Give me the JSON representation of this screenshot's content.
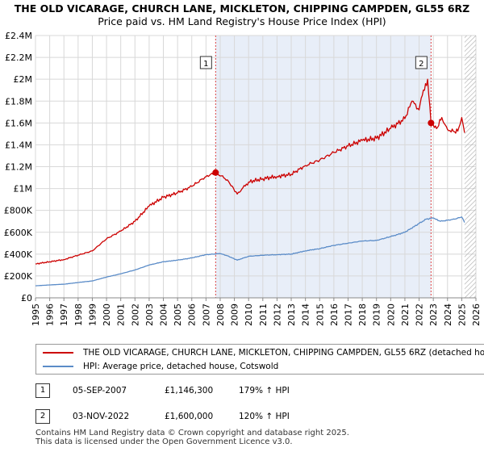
{
  "chart_data": {
    "type": "line",
    "title": "THE OLD VICARAGE, CHURCH LANE, MICKLETON, CHIPPING CAMPDEN, GL55 6RZ",
    "subtitle": "Price paid vs. HM Land Registry's House Price Index (HPI)",
    "xlabel": "",
    "ylabel": "",
    "xlim": [
      1995,
      2026
    ],
    "ylim": [
      0,
      2400000
    ],
    "x_ticks": [
      "1995",
      "1996",
      "1997",
      "1998",
      "1999",
      "2000",
      "2001",
      "2002",
      "2003",
      "2004",
      "2005",
      "2006",
      "2007",
      "2008",
      "2009",
      "2010",
      "2011",
      "2012",
      "2013",
      "2014",
      "2015",
      "2016",
      "2017",
      "2018",
      "2019",
      "2020",
      "2021",
      "2022",
      "2023",
      "2024",
      "2025",
      "2026"
    ],
    "y_ticks": [
      {
        "value": 0,
        "label": "£0"
      },
      {
        "value": 200000,
        "label": "£200K"
      },
      {
        "value": 400000,
        "label": "£400K"
      },
      {
        "value": 600000,
        "label": "£600K"
      },
      {
        "value": 800000,
        "label": "£800K"
      },
      {
        "value": 1000000,
        "label": "£1M"
      },
      {
        "value": 1200000,
        "label": "£1.2M"
      },
      {
        "value": 1400000,
        "label": "£1.4M"
      },
      {
        "value": 1600000,
        "label": "£1.6M"
      },
      {
        "value": 1800000,
        "label": "£1.8M"
      },
      {
        "value": 2000000,
        "label": "£2M"
      },
      {
        "value": 2200000,
        "label": "£2.2M"
      },
      {
        "value": 2400000,
        "label": "£2.4M"
      }
    ],
    "grid": true,
    "series": [
      {
        "name": "THE OLD VICARAGE, CHURCH LANE, MICKLETON, CHIPPING CAMPDEN, GL55 6RZ (detached house)",
        "color": "#cc0000",
        "x": [
          1995,
          1996,
          1997,
          1998,
          1999,
          2000,
          2001,
          2002,
          2003,
          2004,
          2005,
          2006,
          2007,
          2007.68,
          2008.5,
          2009.2,
          2010,
          2011,
          2012,
          2013,
          2014,
          2015,
          2016,
          2017,
          2018,
          2019,
          2020,
          2021,
          2021.5,
          2022,
          2022.3,
          2022.6,
          2022.84,
          2023,
          2023.3,
          2023.6,
          2024,
          2024.5,
          2024.8,
          2025,
          2025.2
        ],
        "y": [
          310000,
          330000,
          350000,
          390000,
          430000,
          540000,
          610000,
          700000,
          840000,
          920000,
          960000,
          1020000,
          1110000,
          1146300,
          1080000,
          950000,
          1060000,
          1090000,
          1110000,
          1130000,
          1210000,
          1260000,
          1330000,
          1390000,
          1440000,
          1460000,
          1550000,
          1640000,
          1800000,
          1720000,
          1900000,
          2000000,
          1600000,
          1580000,
          1560000,
          1650000,
          1540000,
          1520000,
          1560000,
          1650000,
          1510000
        ]
      },
      {
        "name": "HPI: Average price, detached house, Cotswold",
        "color": "#5b8cc8",
        "x": [
          1995,
          1996,
          1997,
          1998,
          1999,
          2000,
          2001,
          2002,
          2003,
          2004,
          2005,
          2006,
          2007,
          2008,
          2008.5,
          2009.2,
          2010,
          2011,
          2012,
          2013,
          2014,
          2015,
          2016,
          2017,
          2018,
          2019,
          2020,
          2021,
          2022,
          2022.5,
          2023,
          2023.5,
          2024,
          2024.5,
          2025,
          2025.2
        ],
        "y": [
          110000,
          118000,
          125000,
          140000,
          155000,
          190000,
          220000,
          255000,
          300000,
          330000,
          345000,
          365000,
          395000,
          405000,
          385000,
          345000,
          380000,
          390000,
          395000,
          400000,
          430000,
          450000,
          480000,
          500000,
          520000,
          525000,
          560000,
          600000,
          680000,
          720000,
          730000,
          700000,
          710000,
          720000,
          740000,
          690000
        ]
      }
    ],
    "sales": [
      {
        "label": "1",
        "x": 2007.68,
        "y": 1146300
      },
      {
        "label": "2",
        "x": 2022.84,
        "y": 1600000
      }
    ],
    "shaded_range": [
      2007.68,
      2022.84
    ],
    "forecast_start": 2025.2
  },
  "legend": {
    "property_label": "THE OLD VICARAGE, CHURCH LANE, MICKLETON, CHIPPING CAMPDEN, GL55 6RZ (detached house)",
    "hpi_label": "HPI: Average price, detached house, Cotswold",
    "property_color": "#cc0000",
    "hpi_color": "#5b8cc8"
  },
  "transactions": [
    {
      "num": "1",
      "date": "05-SEP-2007",
      "price": "£1,146,300",
      "hpi": "179% ↑ HPI"
    },
    {
      "num": "2",
      "date": "03-NOV-2022",
      "price": "£1,600,000",
      "hpi": "120% ↑ HPI"
    }
  ],
  "footer": {
    "line1": "Contains HM Land Registry data © Crown copyright and database right 2025.",
    "line2": "This data is licensed under the Open Government Licence v3.0."
  }
}
